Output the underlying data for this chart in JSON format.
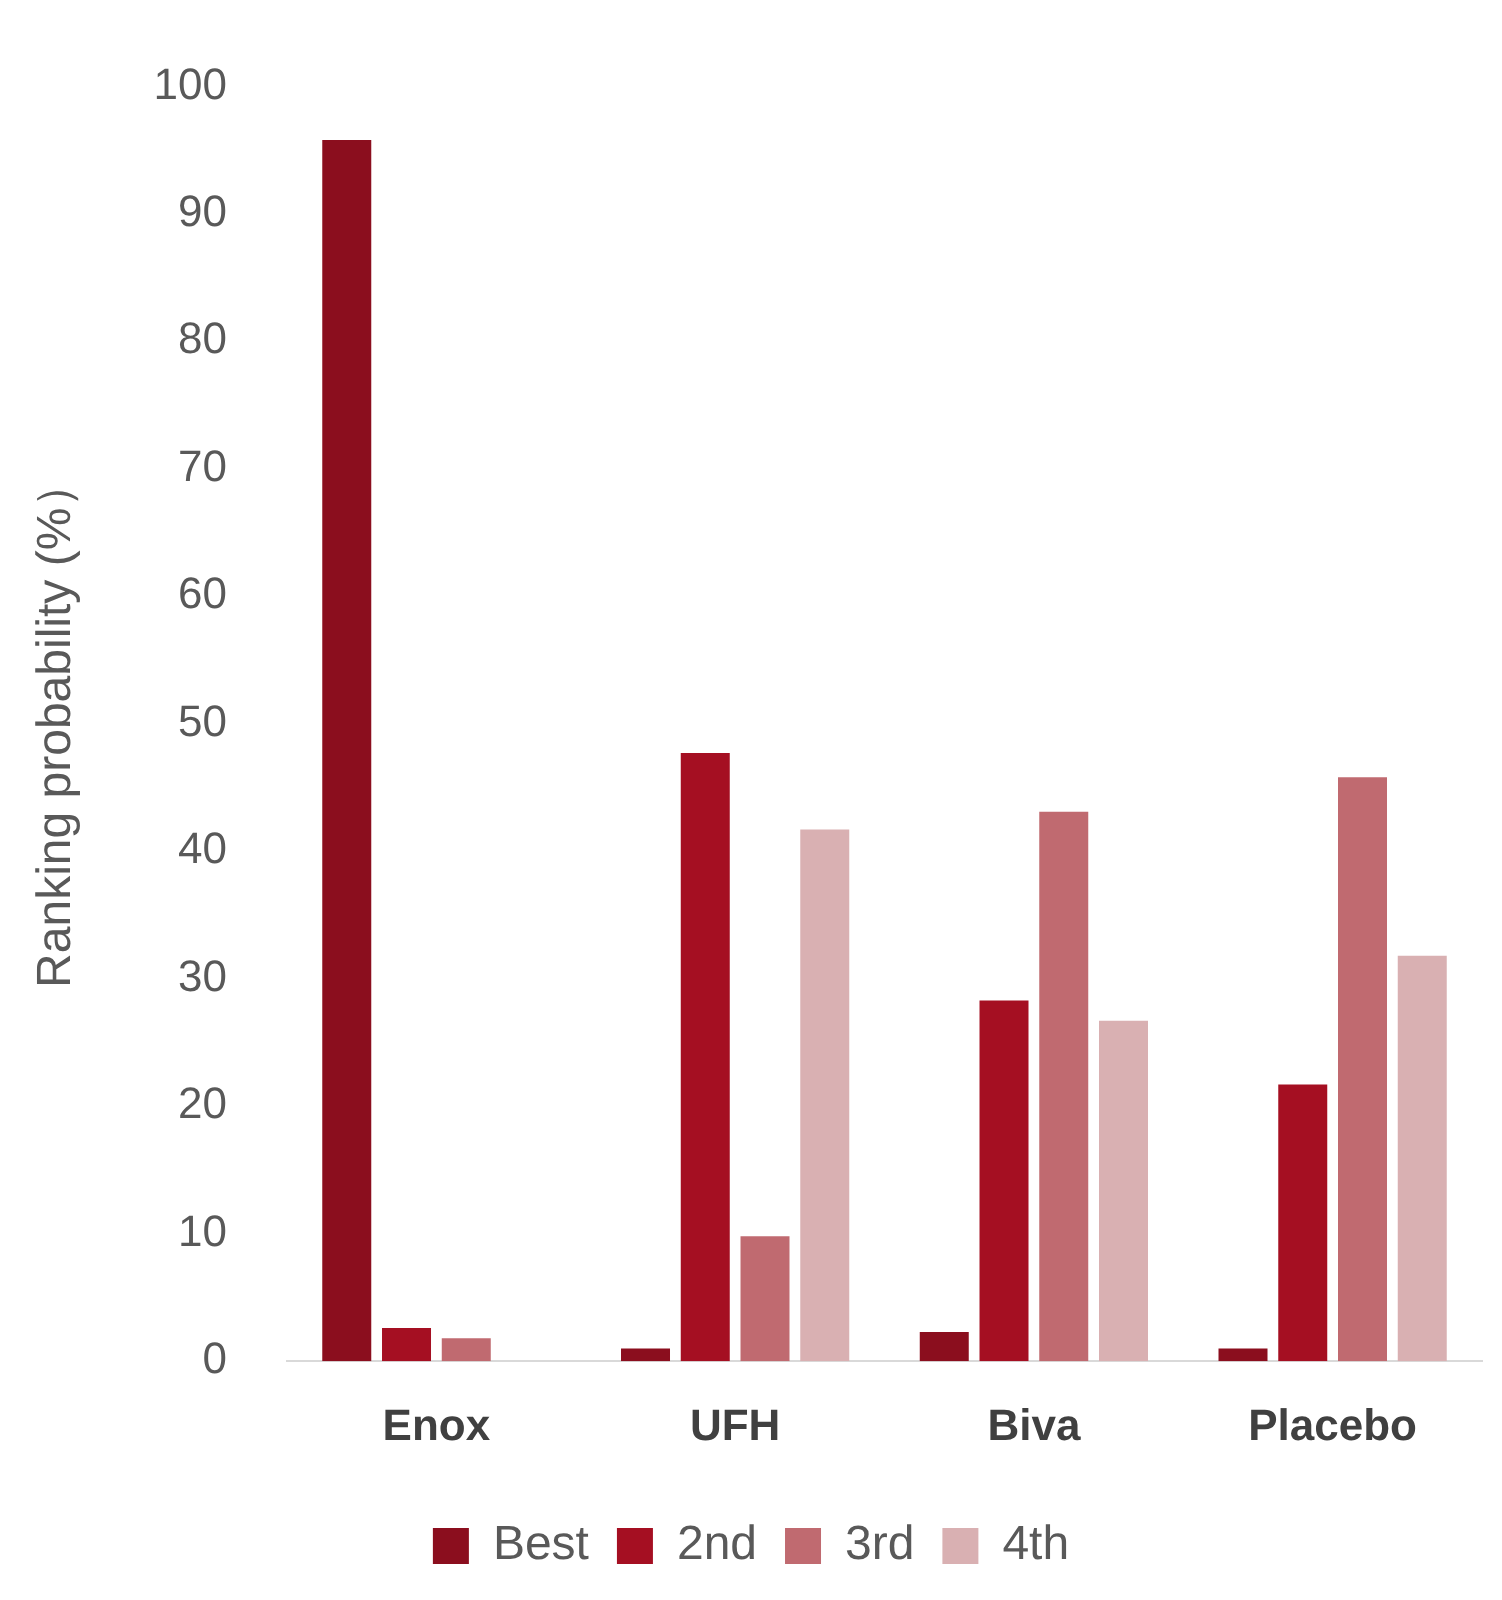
{
  "chart_data": {
    "type": "bar",
    "ylabel": "Ranking probability (%）",
    "categories": [
      "Enox",
      "UFH",
      "Biva",
      "Placebo"
    ],
    "series": [
      {
        "name": "Best",
        "color": "#8b0e1e",
        "values": [
          95.8,
          1,
          2.3,
          1
        ]
      },
      {
        "name": "2nd",
        "color": "#a50f22",
        "values": [
          2.6,
          47.7,
          28.3,
          21.7
        ]
      },
      {
        "name": "3rd",
        "color": "#c06a70",
        "values": [
          1.8,
          9.8,
          43.1,
          45.8
        ]
      },
      {
        "name": "4th",
        "color": "#d9b0b2",
        "values": [
          0,
          41.7,
          26.7,
          31.8
        ]
      }
    ],
    "ylim": [
      0,
      100
    ],
    "yticks": [
      0,
      10,
      20,
      30,
      40,
      50,
      60,
      70,
      80,
      90,
      100
    ],
    "grid": false,
    "legend": "bottom"
  }
}
